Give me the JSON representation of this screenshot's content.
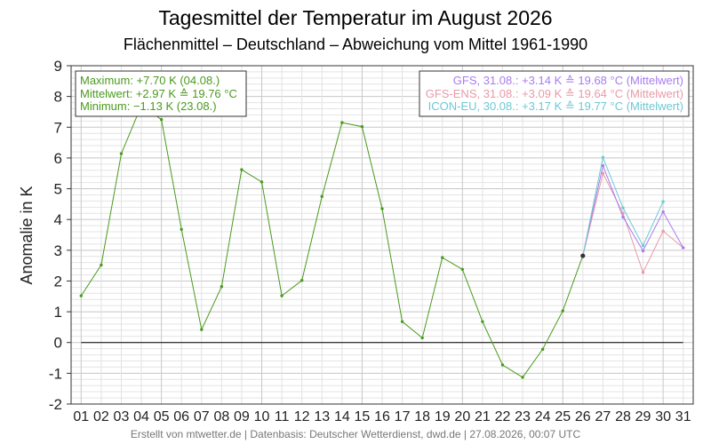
{
  "chart_data": {
    "type": "line",
    "title": "Tagesmittel der Temperatur im August 2026",
    "subtitle": "Flächenmittel – Deutschland – Abweichung vom Mittel 1961-1990",
    "ylabel": "Anomalie in K",
    "xlabel": "",
    "ylim": [
      -2,
      9
    ],
    "yticks": [
      "-2",
      "-1",
      "0",
      "1",
      "2",
      "3",
      "4",
      "5",
      "6",
      "7",
      "8",
      "9"
    ],
    "categories": [
      "01",
      "02",
      "03",
      "04",
      "05",
      "06",
      "07",
      "08",
      "09",
      "10",
      "11",
      "12",
      "13",
      "14",
      "15",
      "16",
      "17",
      "18",
      "19",
      "20",
      "21",
      "22",
      "23",
      "24",
      "25",
      "26",
      "27",
      "28",
      "29",
      "30",
      "31"
    ],
    "grid": true,
    "colors": {
      "observed": "#4a9a1e",
      "gfs": "#a87cf0",
      "gfs_ens": "#e89aa8",
      "icon_eu": "#6fc8d4",
      "zero_line": "#000000"
    },
    "series": [
      {
        "key": "observed",
        "values": [
          1.52,
          2.52,
          6.14,
          7.7,
          7.25,
          3.68,
          0.42,
          1.82,
          5.62,
          5.22,
          1.52,
          2.02,
          4.75,
          7.15,
          7.02,
          4.35,
          0.68,
          0.15,
          2.76,
          2.38,
          0.68,
          -0.73,
          -1.13,
          -0.22,
          1.03,
          2.82,
          null,
          null,
          null,
          null,
          null
        ]
      },
      {
        "key": "gfs",
        "values": [
          null,
          null,
          null,
          null,
          null,
          null,
          null,
          null,
          null,
          null,
          null,
          null,
          null,
          null,
          null,
          null,
          null,
          null,
          null,
          null,
          null,
          null,
          null,
          null,
          null,
          2.82,
          5.75,
          4.08,
          2.98,
          4.25,
          3.08
        ]
      },
      {
        "key": "gfs_ens",
        "values": [
          null,
          null,
          null,
          null,
          null,
          null,
          null,
          null,
          null,
          null,
          null,
          null,
          null,
          null,
          null,
          null,
          null,
          null,
          null,
          null,
          null,
          null,
          null,
          null,
          null,
          2.82,
          5.5,
          4.2,
          2.28,
          3.62,
          3.08
        ]
      },
      {
        "key": "icon_eu",
        "values": [
          null,
          null,
          null,
          null,
          null,
          null,
          null,
          null,
          null,
          null,
          null,
          null,
          null,
          null,
          null,
          null,
          null,
          null,
          null,
          null,
          null,
          null,
          null,
          null,
          null,
          2.82,
          6.02,
          4.38,
          3.15,
          4.58,
          null
        ]
      }
    ],
    "stats_box": {
      "max": "Maximum: +7.70 K  (04.08.)",
      "mean": "Mittelwert:  +2.97 K  ≙  19.76 °C",
      "min": "Minimum:  −1.13 K  (23.08.)"
    },
    "forecast_legend": {
      "gfs": "GFS, 31.08.: +3.14 K  ≙  19.68 °C (Mittelwert)",
      "gfs_ens": "GFS-ENS, 31.08.: +3.09 K  ≙  19.64 °C (Mittelwert)",
      "icon_eu": "ICON-EU, 30.08.: +3.17 K  ≙  19.77 °C (Mittelwert)"
    },
    "legend_position": "top-right",
    "footer": "Erstellt von mtwetter.de | Datenbasis: Deutscher Wetterdienst, dwd.de | 27.08.2026, 00:07 UTC"
  }
}
